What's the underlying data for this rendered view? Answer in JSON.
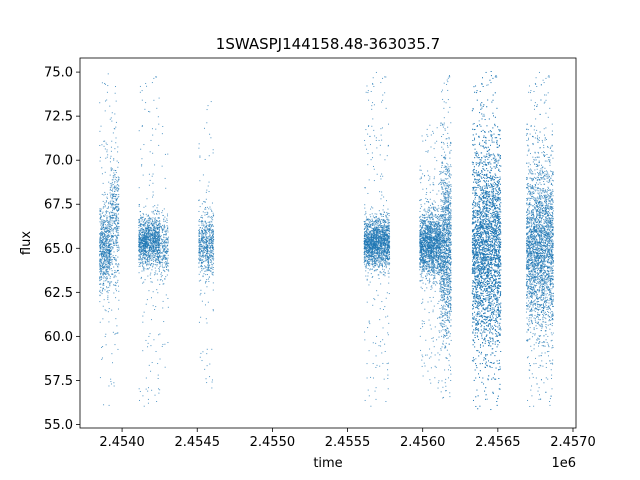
{
  "chart_data": {
    "type": "scatter",
    "title": "1SWASPJ144158.48-363035.7",
    "xlabel": "time",
    "ylabel": "flux",
    "x_offset_label": "1e6",
    "xlim": [
      2.45372,
      2.45702
    ],
    "ylim": [
      54.8,
      75.8
    ],
    "x_ticks": [
      2.454,
      2.4545,
      2.455,
      2.4555,
      2.456,
      2.4565,
      2.457
    ],
    "x_tick_labels": [
      "2.4540",
      "2.4545",
      "2.4550",
      "2.4555",
      "2.4560",
      "2.4565",
      "2.4570"
    ],
    "y_ticks": [
      55.0,
      57.5,
      60.0,
      62.5,
      65.0,
      67.5,
      70.0,
      72.5,
      75.0
    ],
    "y_tick_labels": [
      "55.0",
      "57.5",
      "60.0",
      "62.5",
      "65.0",
      "67.5",
      "70.0",
      "72.5",
      "75.0"
    ],
    "grid": false,
    "legend": "none",
    "marker_color": "#1f77b4",
    "series_x_unit_note_shown_on_axis": "1e6",
    "segments": [
      {
        "x_start": 2.45385,
        "x_end": 2.45392,
        "center": 65.0,
        "spread": 1.2,
        "outlier_low": 56.0,
        "outlier_high": 75.0,
        "density": 700
      },
      {
        "x_start": 2.45392,
        "x_end": 2.45398,
        "center": 66.5,
        "spread": 1.8,
        "outlier_low": 56.5,
        "outlier_high": 75.0,
        "density": 450
      },
      {
        "x_start": 2.45411,
        "x_end": 2.45425,
        "center": 65.4,
        "spread": 0.7,
        "outlier_low": 56.0,
        "outlier_high": 75.0,
        "density": 1300
      },
      {
        "x_start": 2.45425,
        "x_end": 2.45431,
        "center": 65.0,
        "spread": 0.9,
        "outlier_low": 56.0,
        "outlier_high": 74.5,
        "density": 250
      },
      {
        "x_start": 2.45451,
        "x_end": 2.45461,
        "center": 65.2,
        "spread": 0.9,
        "outlier_low": 57.0,
        "outlier_high": 73.5,
        "density": 650
      },
      {
        "x_start": 2.45561,
        "x_end": 2.45578,
        "center": 65.3,
        "spread": 0.7,
        "outlier_low": 56.0,
        "outlier_high": 75.0,
        "density": 1900
      },
      {
        "x_start": 2.45598,
        "x_end": 2.45612,
        "center": 65.2,
        "spread": 0.9,
        "outlier_low": 57.0,
        "outlier_high": 72.0,
        "density": 1800
      },
      {
        "x_start": 2.45612,
        "x_end": 2.45619,
        "center": 65.0,
        "spread": 2.5,
        "outlier_low": 56.5,
        "outlier_high": 75.0,
        "density": 1300
      },
      {
        "x_start": 2.45633,
        "x_end": 2.45652,
        "center": 65.0,
        "spread": 2.8,
        "outlier_low": 56.0,
        "outlier_high": 75.0,
        "density": 5200
      },
      {
        "x_start": 2.45669,
        "x_end": 2.45687,
        "center": 65.0,
        "spread": 2.3,
        "outlier_low": 56.0,
        "outlier_high": 75.0,
        "density": 3000
      }
    ]
  }
}
